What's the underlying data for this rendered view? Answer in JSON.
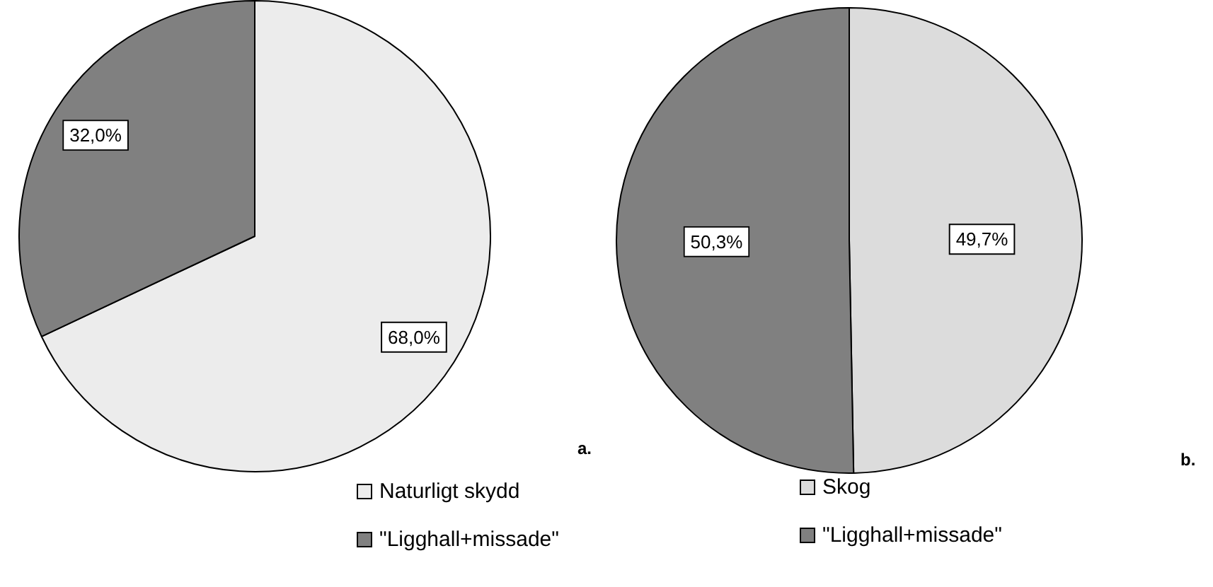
{
  "chart_data": [
    {
      "type": "pie",
      "categories": [
        "Naturligt skydd",
        "\"Ligghall+missade\""
      ],
      "values": [
        68.0,
        32.0
      ],
      "colors": [
        "#ececec",
        "#808080"
      ],
      "value_labels": [
        "68,0%",
        "32,0%"
      ],
      "legend": "bottom",
      "annotations": [
        "a."
      ]
    },
    {
      "type": "pie",
      "categories": [
        "Skog",
        "\"Ligghall+missade\""
      ],
      "values": [
        49.7,
        50.3
      ],
      "colors": [
        "#dcdcdc",
        "#808080"
      ],
      "value_labels": [
        "49,7%",
        "50,3%"
      ],
      "legend": "bottom",
      "annotations": [
        "b."
      ]
    }
  ]
}
